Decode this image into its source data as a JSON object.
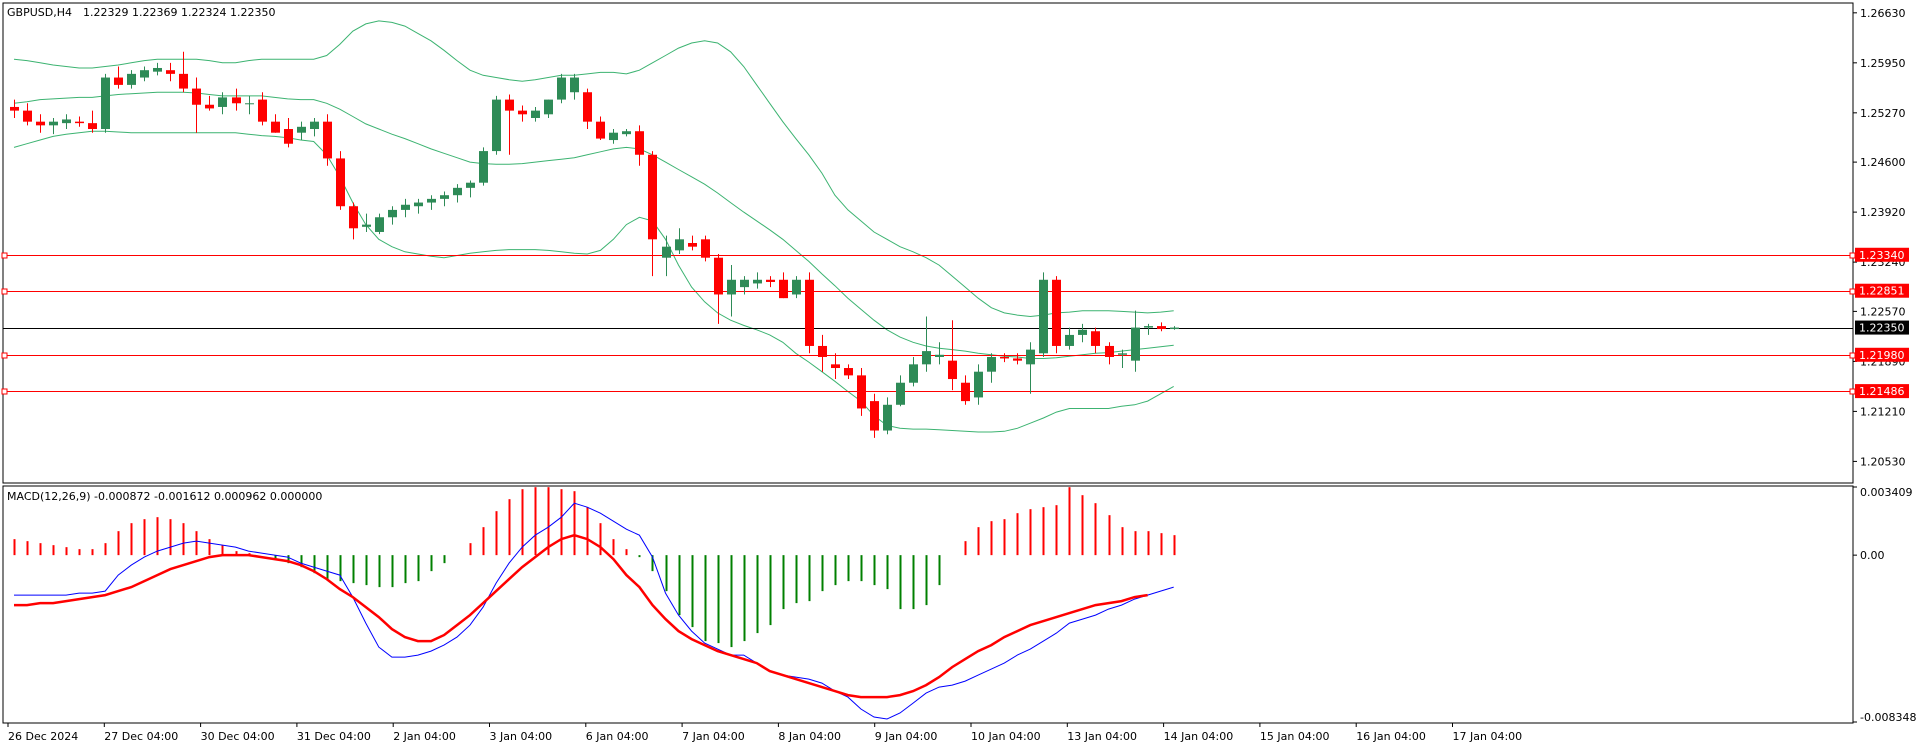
{
  "header": {
    "symbol_timeframe": "GBPUSD,H4",
    "ohlc": "1.22329 1.22369 1.22324 1.22350"
  },
  "macd_header": "MACD(12,26,9) -0.000872 -0.001612 0.000962 0.000000",
  "colors": {
    "bull": "#2e8b57",
    "bear": "#ff0000",
    "bands": "#3cb371",
    "level_lines": "#ff0000",
    "current_price_line": "#000000",
    "macd_line": "#0000ff",
    "signal_line": "#ff0000",
    "hist_positive": "#ff0000",
    "hist_negative": "#008000"
  },
  "price_axis": {
    "ticks": [
      "1.26630",
      "1.25950",
      "1.25270",
      "1.24600",
      "1.23920",
      "1.23240",
      "1.22570",
      "1.21890",
      "1.21210",
      "1.20530"
    ]
  },
  "macd_axis": {
    "ticks": [
      "0.003409",
      "0.00",
      "-0.008348"
    ]
  },
  "level_badges": [
    "1.23340",
    "1.22851",
    "1.21980",
    "1.21486"
  ],
  "current_price_badge": "1.22350",
  "time_axis": {
    "labels": [
      "26 Dec 2024",
      "27 Dec 04:00",
      "30 Dec 04:00",
      "31 Dec 04:00",
      "2 Jan 04:00",
      "3 Jan 04:00",
      "6 Jan 04:00",
      "7 Jan 04:00",
      "8 Jan 04:00",
      "9 Jan 04:00",
      "10 Jan 04:00",
      "13 Jan 04:00",
      "14 Jan 04:00",
      "15 Jan 04:00",
      "16 Jan 04:00",
      "17 Jan 04:00"
    ]
  },
  "chart_data": [
    {
      "type": "candlestick",
      "symbol": "GBPUSD",
      "timeframe": "H4",
      "ylim": [
        1.2025,
        1.2675
      ],
      "horizontal_levels": [
        1.2334,
        1.22851,
        1.2198,
        1.21486
      ],
      "current_price": 1.2235,
      "candles": [
        [
          1.2535,
          1.2545,
          1.252,
          1.253
        ],
        [
          1.253,
          1.254,
          1.251,
          1.2515
        ],
        [
          1.2515,
          1.2525,
          1.25,
          1.251
        ],
        [
          1.251,
          1.252,
          1.2498,
          1.2515
        ],
        [
          1.2513,
          1.2525,
          1.2505,
          1.2518
        ],
        [
          1.2515,
          1.2522,
          1.2508,
          1.2513
        ],
        [
          1.2513,
          1.253,
          1.25,
          1.2505
        ],
        [
          1.2505,
          1.258,
          1.25,
          1.2575
        ],
        [
          1.2575,
          1.259,
          1.256,
          1.2565
        ],
        [
          1.2565,
          1.2585,
          1.256,
          1.258
        ],
        [
          1.2575,
          1.259,
          1.257,
          1.2585
        ],
        [
          1.2583,
          1.2595,
          1.2578,
          1.2588
        ],
        [
          1.2585,
          1.2595,
          1.257,
          1.258
        ],
        [
          1.258,
          1.261,
          1.2555,
          1.256
        ],
        [
          1.256,
          1.2575,
          1.25,
          1.2538
        ],
        [
          1.2538,
          1.255,
          1.253,
          1.2533
        ],
        [
          1.2535,
          1.2555,
          1.2525,
          1.2548
        ],
        [
          1.2548,
          1.256,
          1.253,
          1.254
        ],
        [
          1.254,
          1.255,
          1.2525,
          1.254
        ],
        [
          1.2545,
          1.2555,
          1.251,
          1.2515
        ],
        [
          1.2515,
          1.2525,
          1.25,
          1.25
        ],
        [
          1.2505,
          1.252,
          1.248,
          1.2485
        ],
        [
          1.25,
          1.2515,
          1.249,
          1.2508
        ],
        [
          1.2505,
          1.252,
          1.2495,
          1.2515
        ],
        [
          1.2515,
          1.2525,
          1.2455,
          1.2465
        ],
        [
          1.2465,
          1.2475,
          1.2395,
          1.24
        ],
        [
          1.24,
          1.2405,
          1.2355,
          1.237
        ],
        [
          1.2372,
          1.239,
          1.2365,
          1.2375
        ],
        [
          1.2365,
          1.239,
          1.2362,
          1.2385
        ],
        [
          1.2385,
          1.24,
          1.2375,
          1.2395
        ],
        [
          1.2395,
          1.241,
          1.2385,
          1.2402
        ],
        [
          1.24,
          1.241,
          1.239,
          1.2405
        ],
        [
          1.2405,
          1.2415,
          1.2395,
          1.241
        ],
        [
          1.241,
          1.242,
          1.24,
          1.2415
        ],
        [
          1.2415,
          1.243,
          1.2405,
          1.2425
        ],
        [
          1.2425,
          1.2435,
          1.2412,
          1.2432
        ],
        [
          1.2432,
          1.248,
          1.2428,
          1.2475
        ],
        [
          1.2475,
          1.255,
          1.247,
          1.2545
        ],
        [
          1.2545,
          1.2552,
          1.247,
          1.253
        ],
        [
          1.253,
          1.2537,
          1.2515,
          1.2525
        ],
        [
          1.252,
          1.2535,
          1.2515,
          1.253
        ],
        [
          1.2525,
          1.2545,
          1.252,
          1.2545
        ],
        [
          1.2545,
          1.258,
          1.254,
          1.2575
        ],
        [
          1.2555,
          1.258,
          1.2545,
          1.2575
        ],
        [
          1.2555,
          1.256,
          1.2505,
          1.2515
        ],
        [
          1.2515,
          1.2522,
          1.249,
          1.2492
        ],
        [
          1.249,
          1.2505,
          1.2485,
          1.25
        ],
        [
          1.2498,
          1.2505,
          1.2495,
          1.2502
        ],
        [
          1.2502,
          1.251,
          1.2455,
          1.247
        ],
        [
          1.247,
          1.2475,
          1.2305,
          1.2355
        ],
        [
          1.233,
          1.236,
          1.2305,
          1.2345
        ],
        [
          1.234,
          1.237,
          1.2335,
          1.2355
        ],
        [
          1.235,
          1.236,
          1.234,
          1.2345
        ],
        [
          1.2355,
          1.236,
          1.2325,
          1.233
        ],
        [
          1.233,
          1.2335,
          1.224,
          1.228
        ],
        [
          1.228,
          1.232,
          1.225,
          1.23
        ],
        [
          1.229,
          1.2305,
          1.228,
          1.23
        ],
        [
          1.2295,
          1.231,
          1.2288,
          1.23
        ],
        [
          1.23,
          1.2305,
          1.229,
          1.2297
        ],
        [
          1.23,
          1.231,
          1.2275,
          1.2275
        ],
        [
          1.228,
          1.2305,
          1.2275,
          1.23
        ],
        [
          1.23,
          1.231,
          1.22,
          1.221
        ],
        [
          1.221,
          1.2225,
          1.2175,
          1.2195
        ],
        [
          1.2185,
          1.22,
          1.2165,
          1.218
        ],
        [
          1.218,
          1.2185,
          1.2165,
          1.217
        ],
        [
          1.217,
          1.218,
          1.2115,
          1.2125
        ],
        [
          1.2135,
          1.2145,
          1.2085,
          1.2095
        ],
        [
          1.2095,
          1.214,
          1.209,
          1.213
        ],
        [
          1.213,
          1.217,
          1.2128,
          1.216
        ],
        [
          1.216,
          1.2195,
          1.2155,
          1.2185
        ],
        [
          1.2185,
          1.225,
          1.2175,
          1.2203
        ],
        [
          1.2195,
          1.2215,
          1.2185,
          1.2198
        ],
        [
          1.219,
          1.2245,
          1.215,
          1.2165
        ],
        [
          1.216,
          1.217,
          1.213,
          1.2135
        ],
        [
          1.214,
          1.2185,
          1.213,
          1.2175
        ],
        [
          1.2175,
          1.22,
          1.216,
          1.2195
        ],
        [
          1.2195,
          1.22,
          1.2188,
          1.2193
        ],
        [
          1.2193,
          1.22,
          1.2185,
          1.219
        ],
        [
          1.2185,
          1.2215,
          1.2145,
          1.2205
        ],
        [
          1.22,
          1.231,
          1.2195,
          1.23
        ],
        [
          1.23,
          1.2305,
          1.22,
          1.221
        ],
        [
          1.221,
          1.2235,
          1.2205,
          1.2225
        ],
        [
          1.2225,
          1.224,
          1.2215,
          1.2232
        ],
        [
          1.223,
          1.2235,
          1.22,
          1.221
        ],
        [
          1.221,
          1.2215,
          1.2185,
          1.2195
        ],
        [
          1.2198,
          1.2205,
          1.218,
          1.22
        ],
        [
          1.219,
          1.2258,
          1.2175,
          1.2235
        ],
        [
          1.2235,
          1.224,
          1.2225,
          1.2237
        ],
        [
          1.2237,
          1.2242,
          1.223,
          1.2233
        ],
        [
          1.2233,
          1.2237,
          1.2232,
          1.2235
        ]
      ],
      "bollinger": {
        "upper": [
          1.26,
          1.2598,
          1.2595,
          1.2592,
          1.259,
          1.2588,
          1.2588,
          1.259,
          1.2592,
          1.2595,
          1.2598,
          1.26,
          1.26,
          1.26,
          1.26,
          1.2598,
          1.2595,
          1.2595,
          1.2598,
          1.26,
          1.26,
          1.26,
          1.26,
          1.26,
          1.2605,
          1.262,
          1.2638,
          1.2648,
          1.2652,
          1.265,
          1.2645,
          1.2635,
          1.2625,
          1.2612,
          1.2598,
          1.2585,
          1.2578,
          1.2575,
          1.2572,
          1.257,
          1.2572,
          1.2575,
          1.2578,
          1.2578,
          1.258,
          1.2582,
          1.2582,
          1.258,
          1.2585,
          1.2595,
          1.2605,
          1.2615,
          1.2622,
          1.2625,
          1.2622,
          1.261,
          1.259,
          1.2565,
          1.254,
          1.2515,
          1.2492,
          1.247,
          1.2445,
          1.2415,
          1.2395,
          1.238,
          1.2365,
          1.2355,
          1.2345,
          1.2338,
          1.233,
          1.232,
          1.2305,
          1.229,
          1.2275,
          1.2262,
          1.2255,
          1.2252,
          1.225,
          1.2252,
          1.2255,
          1.2256,
          1.2258,
          1.2258,
          1.2258,
          1.2257,
          1.2256,
          1.2255,
          1.2256,
          1.2258
        ],
        "middle": [
          1.254,
          1.2542,
          1.2545,
          1.2546,
          1.2547,
          1.2548,
          1.2548,
          1.255,
          1.2552,
          1.2553,
          1.2554,
          1.2555,
          1.2555,
          1.2555,
          1.2554,
          1.2552,
          1.255,
          1.255,
          1.255,
          1.255,
          1.2548,
          1.2546,
          1.2545,
          1.2545,
          1.254,
          1.2532,
          1.2522,
          1.2512,
          1.2505,
          1.2498,
          1.2492,
          1.2485,
          1.2478,
          1.2472,
          1.2466,
          1.246,
          1.2458,
          1.2457,
          1.2457,
          1.2458,
          1.246,
          1.2462,
          1.2464,
          1.2466,
          1.247,
          1.2474,
          1.2478,
          1.248,
          1.2478,
          1.247,
          1.246,
          1.245,
          1.244,
          1.243,
          1.2418,
          1.2405,
          1.2392,
          1.238,
          1.2368,
          1.2355,
          1.234,
          1.2325,
          1.2308,
          1.2292,
          1.2275,
          1.226,
          1.2245,
          1.2232,
          1.2222,
          1.2215,
          1.221,
          1.2207,
          1.2205,
          1.2203,
          1.22,
          1.2198,
          1.2196,
          1.2195,
          1.2193,
          1.2193,
          1.2194,
          1.2196,
          1.2198,
          1.22,
          1.2201,
          1.2203,
          1.2205,
          1.2207,
          1.2209,
          1.2211
        ],
        "lower": [
          1.248,
          1.2485,
          1.249,
          1.2495,
          1.2498,
          1.25,
          1.2502,
          1.2502,
          1.2501,
          1.25,
          1.25,
          1.25,
          1.25,
          1.25,
          1.25,
          1.25,
          1.25,
          1.25,
          1.2498,
          1.2496,
          1.2495,
          1.2493,
          1.249,
          1.2488,
          1.247,
          1.244,
          1.2405,
          1.2375,
          1.2355,
          1.2345,
          1.2338,
          1.2335,
          1.2332,
          1.233,
          1.2333,
          1.2336,
          1.2338,
          1.234,
          1.2341,
          1.2341,
          1.2341,
          1.234,
          1.2338,
          1.2336,
          1.2335,
          1.234,
          1.2355,
          1.2375,
          1.2385,
          1.238,
          1.2355,
          1.232,
          1.229,
          1.227,
          1.2255,
          1.2245,
          1.2238,
          1.2232,
          1.2225,
          1.2215,
          1.22,
          1.2188,
          1.2175,
          1.2162,
          1.2148,
          1.2135,
          1.2115,
          1.2102,
          1.2098,
          1.2097,
          1.2097,
          1.2096,
          1.2095,
          1.2094,
          1.2093,
          1.2093,
          1.2094,
          1.2098,
          1.2105,
          1.2112,
          1.212,
          1.2125,
          1.2125,
          1.2125,
          1.2125,
          1.2128,
          1.213,
          1.2135,
          1.2145,
          1.2155
        ]
      }
    },
    {
      "type": "macd",
      "title": "MACD(12,26,9)",
      "ylim": [
        -0.008348,
        0.003409
      ],
      "macd": [
        -0.002,
        -0.002,
        -0.002,
        -0.002,
        -0.002,
        -0.0019,
        -0.0019,
        -0.0018,
        -0.001,
        -0.0005,
        -0.0001,
        0.0002,
        0.0004,
        0.0006,
        0.0007,
        0.0006,
        0.0005,
        0.0004,
        0.0002,
        0.0001,
        0.0,
        -0.0001,
        -0.0004,
        -0.0006,
        -0.0008,
        -0.001,
        -0.0021,
        -0.0034,
        -0.0046,
        -0.0051,
        -0.0051,
        -0.005,
        -0.0048,
        -0.0045,
        -0.0041,
        -0.0035,
        -0.0026,
        -0.0014,
        -0.0004,
        0.0004,
        0.001,
        0.0014,
        0.0019,
        0.0026,
        0.0024,
        0.0021,
        0.0017,
        0.0013,
        0.001,
        -0.0001,
        -0.0019,
        -0.003,
        -0.0038,
        -0.0044,
        -0.0047,
        -0.005,
        -0.005,
        -0.0054,
        -0.0058,
        -0.006,
        -0.0061,
        -0.0062,
        -0.0064,
        -0.0068,
        -0.0071,
        -0.0077,
        -0.0081,
        -0.0082,
        -0.0079,
        -0.0074,
        -0.0069,
        -0.0066,
        -0.0065,
        -0.0063,
        -0.006,
        -0.0057,
        -0.0054,
        -0.005,
        -0.0047,
        -0.0043,
        -0.0039,
        -0.0034,
        -0.0032,
        -0.003,
        -0.0027,
        -0.0025,
        -0.0022,
        -0.002,
        -0.0018,
        -0.0016
      ],
      "signal": [
        -0.0025,
        -0.0025,
        -0.0024,
        -0.0024,
        -0.0023,
        -0.0022,
        -0.0021,
        -0.002,
        -0.0018,
        -0.0016,
        -0.0013,
        -0.001,
        -0.0007,
        -0.0005,
        -0.0003,
        -0.0001,
        0.0,
        0.0,
        0.0,
        -0.0001,
        -0.0002,
        -0.0003,
        -0.0005,
        -0.0008,
        -0.0012,
        -0.0017,
        -0.0021,
        -0.0026,
        -0.0031,
        -0.0037,
        -0.0041,
        -0.0043,
        -0.0043,
        -0.004,
        -0.0035,
        -0.003,
        -0.0024,
        -0.0018,
        -0.0012,
        -0.0006,
        -0.0001,
        0.0004,
        0.0008,
        0.001,
        0.0008,
        0.0004,
        -0.0002,
        -0.001,
        -0.0016,
        -0.0025,
        -0.0032,
        -0.0038,
        -0.0042,
        -0.0045,
        -0.0048,
        -0.005,
        -0.0052,
        -0.0054,
        -0.0058,
        -0.006,
        -0.0062,
        -0.0064,
        -0.0066,
        -0.0068,
        -0.007,
        -0.0071,
        -0.0071,
        -0.0071,
        -0.007,
        -0.0068,
        -0.0065,
        -0.0061,
        -0.0056,
        -0.0052,
        -0.0048,
        -0.0045,
        -0.0041,
        -0.0038,
        -0.0035,
        -0.0033,
        -0.0031,
        -0.0029,
        -0.0027,
        -0.0025,
        -0.0024,
        -0.0023,
        -0.0021,
        -0.002
      ],
      "histogram": [
        0.0008,
        0.0007,
        0.0006,
        0.0005,
        0.0004,
        0.0003,
        0.0003,
        0.0006,
        0.0012,
        0.0016,
        0.0018,
        0.0019,
        0.0018,
        0.0016,
        0.0012,
        0.0008,
        0.0005,
        0.0002,
        0.0001,
        0.0,
        -0.0002,
        -0.0004,
        -0.0006,
        -0.0009,
        -0.0012,
        -0.0013,
        -0.0014,
        -0.0015,
        -0.0016,
        -0.0016,
        -0.0014,
        -0.0013,
        -0.0008,
        -0.0004,
        0.0,
        0.0006,
        0.0014,
        0.0022,
        0.0028,
        0.0033,
        0.0034,
        0.0034,
        0.0033,
        0.0032,
        0.0024,
        0.0016,
        0.0008,
        0.0003,
        -0.0001,
        -0.0008,
        -0.0018,
        -0.003,
        -0.0036,
        -0.0043,
        -0.0044,
        -0.0046,
        -0.0043,
        -0.0039,
        -0.0035,
        -0.0027,
        -0.0024,
        -0.0023,
        -0.0018,
        -0.0015,
        -0.0013,
        -0.0013,
        -0.0015,
        -0.0017,
        -0.0027,
        -0.0027,
        -0.0025,
        -0.0015,
        0.0,
        0.0007,
        0.0014,
        0.0017,
        0.0018,
        0.0021,
        0.0023,
        0.0024,
        0.0025,
        0.0034,
        0.003,
        0.0026,
        0.002,
        0.0014,
        0.0012,
        0.0012,
        0.0011,
        0.001
      ]
    }
  ]
}
